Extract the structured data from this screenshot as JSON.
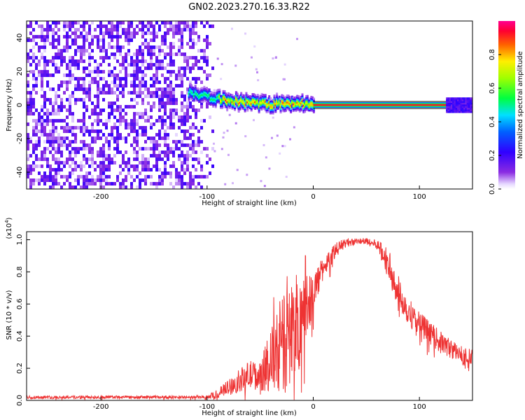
{
  "title": "GN02.2023.270.16.33.R22",
  "chart_data": [
    {
      "type": "heatmap",
      "xlabel": "Height of straight line (km)",
      "ylabel": "Frequency (Hz)",
      "xlim": [
        -270,
        150
      ],
      "ylim": [
        -50,
        50
      ],
      "xticks": [
        -200,
        -100,
        0,
        100
      ],
      "yticks": [
        -40,
        -20,
        0,
        20,
        40
      ],
      "colorbar": {
        "label": "Normalized spectral amplitude",
        "range": [
          0,
          1
        ],
        "ticks": [
          "0.0",
          "0.2",
          "0.4",
          "0.6",
          "0.8"
        ]
      },
      "features": {
        "noise_region_x": [
          -270,
          -95
        ],
        "track_points": [
          [
            -115,
            7
          ],
          [
            -100,
            5
          ],
          [
            -90,
            4
          ],
          [
            -80,
            3
          ],
          [
            -70,
            2
          ],
          [
            -60,
            1.5
          ],
          [
            -50,
            1
          ],
          [
            -40,
            0.5
          ],
          [
            -30,
            0.8
          ],
          [
            -20,
            1
          ],
          [
            -10,
            1
          ],
          [
            0,
            0
          ],
          [
            50,
            0
          ],
          [
            100,
            0
          ],
          [
            150,
            0
          ]
        ],
        "carrier_line_x": [
          0,
          150
        ]
      }
    },
    {
      "type": "line",
      "xlabel": "Height of straight line (km)",
      "ylabel": "SNR (10 * v/v)",
      "y_multiplier": "(x10^4)",
      "xlim": [
        -270,
        150
      ],
      "ylim": [
        0,
        1.05
      ],
      "xticks": [
        -200,
        -100,
        0,
        100
      ],
      "yticks": [
        "0.0",
        "0.2",
        "0.4",
        "0.6",
        "0.8",
        "1.0"
      ],
      "series": [
        {
          "color": "#ee3333",
          "envelope_x": [
            -270,
            -100,
            -90,
            -80,
            -70,
            -60,
            -50,
            -40,
            -30,
            -20,
            -10,
            0,
            10,
            20,
            30,
            40,
            50,
            60,
            70,
            80,
            90,
            100,
            110,
            120,
            130,
            140,
            150
          ],
          "envelope_y": [
            0.02,
            0.02,
            0.04,
            0.08,
            0.12,
            0.16,
            0.15,
            0.25,
            0.32,
            0.42,
            0.55,
            0.68,
            0.83,
            0.93,
            0.98,
            0.99,
            0.99,
            0.97,
            0.86,
            0.68,
            0.55,
            0.48,
            0.42,
            0.36,
            0.32,
            0.28,
            0.26
          ],
          "spread": [
            0.01,
            0.01,
            0.03,
            0.05,
            0.07,
            0.09,
            0.09,
            0.2,
            0.3,
            0.35,
            0.3,
            0.12,
            0.07,
            0.05,
            0.03,
            0.02,
            0.02,
            0.03,
            0.1,
            0.1,
            0.09,
            0.08,
            0.07,
            0.07,
            0.06,
            0.06,
            0.06
          ]
        }
      ]
    }
  ]
}
